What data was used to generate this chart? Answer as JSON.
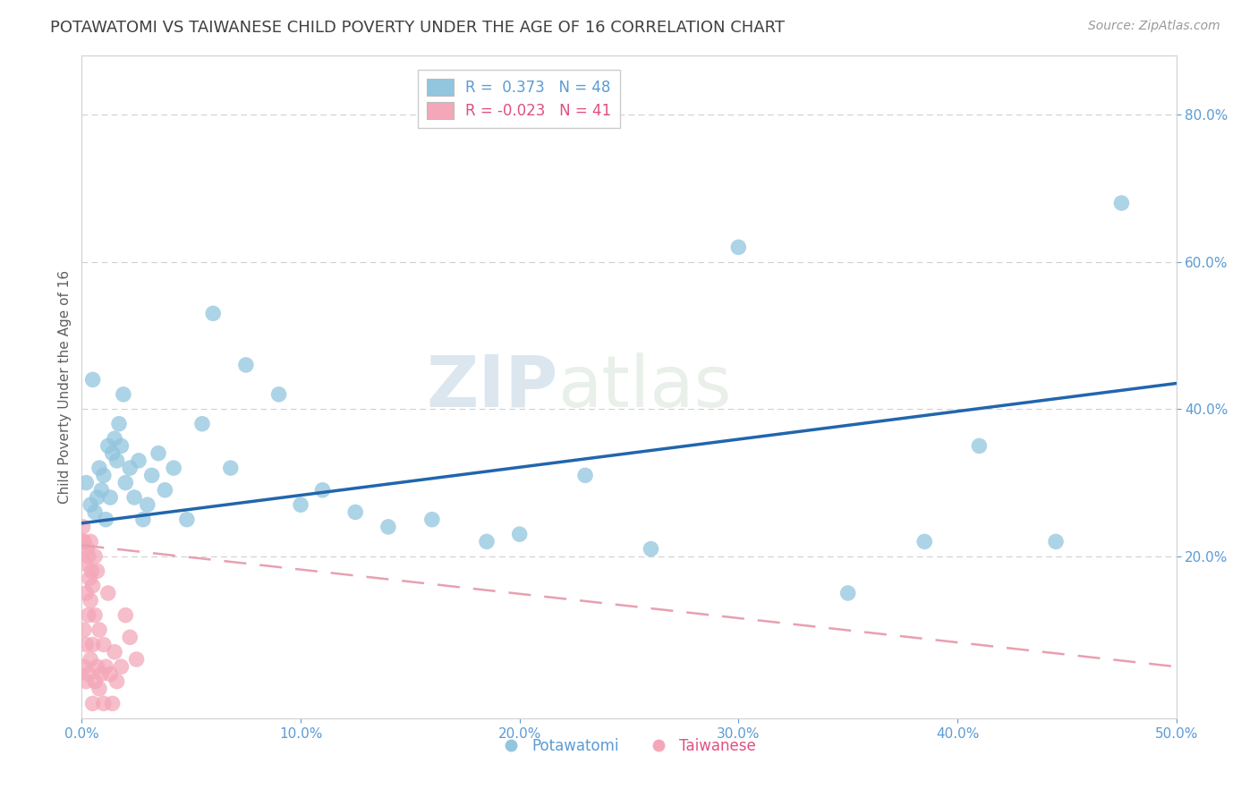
{
  "title": "POTAWATOMI VS TAIWANESE CHILD POVERTY UNDER THE AGE OF 16 CORRELATION CHART",
  "source": "Source: ZipAtlas.com",
  "ylabel": "Child Poverty Under the Age of 16",
  "xlim": [
    0,
    0.5
  ],
  "ylim": [
    -0.02,
    0.88
  ],
  "xticks": [
    0.0,
    0.1,
    0.2,
    0.3,
    0.4,
    0.5
  ],
  "yticks": [
    0.2,
    0.4,
    0.6,
    0.8
  ],
  "legend_label1": "Potawatomi",
  "legend_label2": "Taiwanese",
  "blue_color": "#92c5de",
  "pink_color": "#f4a7b9",
  "blue_line_color": "#2166ac",
  "pink_line_color": "#e8a0b0",
  "watermark_zip": "ZIP",
  "watermark_atlas": "atlas",
  "background_color": "#ffffff",
  "grid_color": "#d0d0d0",
  "title_color": "#404040",
  "axis_label_color": "#5b9bd5",
  "pot_trend_x0": 0.0,
  "pot_trend_y0": 0.245,
  "pot_trend_x1": 0.5,
  "pot_trend_y1": 0.435,
  "tai_trend_x0": 0.0,
  "tai_trend_y0": 0.215,
  "tai_trend_x1": 0.5,
  "tai_trend_y1": 0.05,
  "pot_x": [
    0.002,
    0.004,
    0.005,
    0.006,
    0.007,
    0.008,
    0.009,
    0.01,
    0.011,
    0.012,
    0.013,
    0.014,
    0.015,
    0.016,
    0.017,
    0.018,
    0.019,
    0.02,
    0.022,
    0.024,
    0.026,
    0.028,
    0.03,
    0.032,
    0.035,
    0.038,
    0.042,
    0.048,
    0.055,
    0.06,
    0.068,
    0.075,
    0.09,
    0.1,
    0.11,
    0.125,
    0.14,
    0.16,
    0.185,
    0.2,
    0.23,
    0.26,
    0.3,
    0.35,
    0.385,
    0.41,
    0.445,
    0.475
  ],
  "pot_y": [
    0.3,
    0.27,
    0.44,
    0.26,
    0.28,
    0.32,
    0.29,
    0.31,
    0.25,
    0.35,
    0.28,
    0.34,
    0.36,
    0.33,
    0.38,
    0.35,
    0.42,
    0.3,
    0.32,
    0.28,
    0.33,
    0.25,
    0.27,
    0.31,
    0.34,
    0.29,
    0.32,
    0.25,
    0.38,
    0.53,
    0.32,
    0.46,
    0.42,
    0.27,
    0.29,
    0.26,
    0.24,
    0.25,
    0.22,
    0.23,
    0.31,
    0.21,
    0.62,
    0.15,
    0.22,
    0.35,
    0.22,
    0.68
  ],
  "tai_x": [
    0.0005,
    0.0008,
    0.001,
    0.001,
    0.001,
    0.0015,
    0.002,
    0.002,
    0.002,
    0.0025,
    0.003,
    0.003,
    0.003,
    0.0035,
    0.004,
    0.004,
    0.004,
    0.0045,
    0.005,
    0.005,
    0.005,
    0.006,
    0.006,
    0.006,
    0.007,
    0.007,
    0.008,
    0.008,
    0.009,
    0.01,
    0.01,
    0.011,
    0.012,
    0.013,
    0.014,
    0.015,
    0.016,
    0.018,
    0.02,
    0.022,
    0.025
  ],
  "tai_y": [
    0.24,
    0.22,
    0.05,
    0.1,
    0.22,
    0.19,
    0.03,
    0.08,
    0.15,
    0.21,
    0.04,
    0.12,
    0.2,
    0.17,
    0.06,
    0.14,
    0.22,
    0.18,
    0.0,
    0.08,
    0.16,
    0.03,
    0.12,
    0.2,
    0.05,
    0.18,
    0.02,
    0.1,
    0.04,
    0.0,
    0.08,
    0.05,
    0.15,
    0.04,
    0.0,
    0.07,
    0.03,
    0.05,
    0.12,
    0.09,
    0.06
  ]
}
